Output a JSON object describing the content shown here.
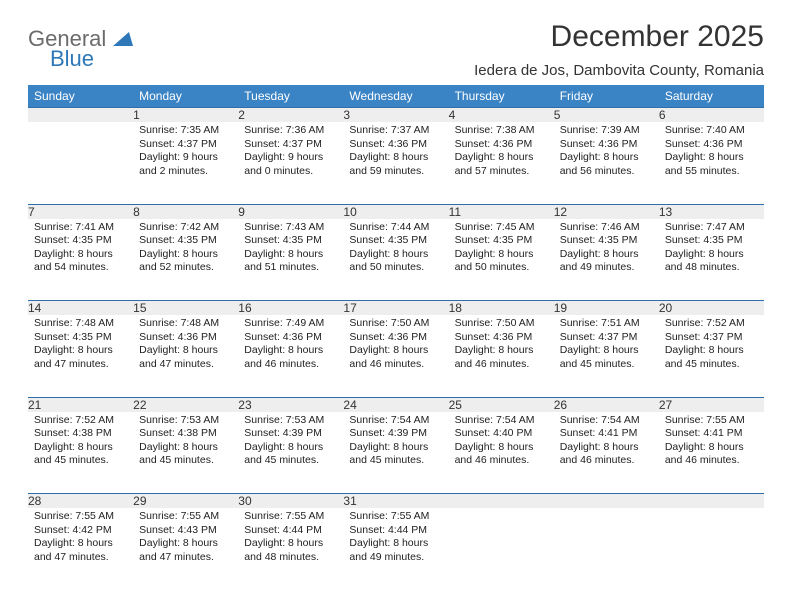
{
  "logo": {
    "top": "General",
    "bottom": "Blue",
    "triangle_color": "#2f78b7"
  },
  "title": "December 2025",
  "location": "Iedera de Jos, Dambovita County, Romania",
  "header_bg": "#3a83c4",
  "daynum_bg": "#eeeeee",
  "border_color": "#2f6ea8",
  "weekdays": [
    "Sunday",
    "Monday",
    "Tuesday",
    "Wednesday",
    "Thursday",
    "Friday",
    "Saturday"
  ],
  "weeks": [
    [
      null,
      {
        "n": "1",
        "sunrise": "7:35 AM",
        "sunset": "4:37 PM",
        "daylight": "9 hours and 2 minutes."
      },
      {
        "n": "2",
        "sunrise": "7:36 AM",
        "sunset": "4:37 PM",
        "daylight": "9 hours and 0 minutes."
      },
      {
        "n": "3",
        "sunrise": "7:37 AM",
        "sunset": "4:36 PM",
        "daylight": "8 hours and 59 minutes."
      },
      {
        "n": "4",
        "sunrise": "7:38 AM",
        "sunset": "4:36 PM",
        "daylight": "8 hours and 57 minutes."
      },
      {
        "n": "5",
        "sunrise": "7:39 AM",
        "sunset": "4:36 PM",
        "daylight": "8 hours and 56 minutes."
      },
      {
        "n": "6",
        "sunrise": "7:40 AM",
        "sunset": "4:36 PM",
        "daylight": "8 hours and 55 minutes."
      }
    ],
    [
      {
        "n": "7",
        "sunrise": "7:41 AM",
        "sunset": "4:35 PM",
        "daylight": "8 hours and 54 minutes."
      },
      {
        "n": "8",
        "sunrise": "7:42 AM",
        "sunset": "4:35 PM",
        "daylight": "8 hours and 52 minutes."
      },
      {
        "n": "9",
        "sunrise": "7:43 AM",
        "sunset": "4:35 PM",
        "daylight": "8 hours and 51 minutes."
      },
      {
        "n": "10",
        "sunrise": "7:44 AM",
        "sunset": "4:35 PM",
        "daylight": "8 hours and 50 minutes."
      },
      {
        "n": "11",
        "sunrise": "7:45 AM",
        "sunset": "4:35 PM",
        "daylight": "8 hours and 50 minutes."
      },
      {
        "n": "12",
        "sunrise": "7:46 AM",
        "sunset": "4:35 PM",
        "daylight": "8 hours and 49 minutes."
      },
      {
        "n": "13",
        "sunrise": "7:47 AM",
        "sunset": "4:35 PM",
        "daylight": "8 hours and 48 minutes."
      }
    ],
    [
      {
        "n": "14",
        "sunrise": "7:48 AM",
        "sunset": "4:35 PM",
        "daylight": "8 hours and 47 minutes."
      },
      {
        "n": "15",
        "sunrise": "7:48 AM",
        "sunset": "4:36 PM",
        "daylight": "8 hours and 47 minutes."
      },
      {
        "n": "16",
        "sunrise": "7:49 AM",
        "sunset": "4:36 PM",
        "daylight": "8 hours and 46 minutes."
      },
      {
        "n": "17",
        "sunrise": "7:50 AM",
        "sunset": "4:36 PM",
        "daylight": "8 hours and 46 minutes."
      },
      {
        "n": "18",
        "sunrise": "7:50 AM",
        "sunset": "4:36 PM",
        "daylight": "8 hours and 46 minutes."
      },
      {
        "n": "19",
        "sunrise": "7:51 AM",
        "sunset": "4:37 PM",
        "daylight": "8 hours and 45 minutes."
      },
      {
        "n": "20",
        "sunrise": "7:52 AM",
        "sunset": "4:37 PM",
        "daylight": "8 hours and 45 minutes."
      }
    ],
    [
      {
        "n": "21",
        "sunrise": "7:52 AM",
        "sunset": "4:38 PM",
        "daylight": "8 hours and 45 minutes."
      },
      {
        "n": "22",
        "sunrise": "7:53 AM",
        "sunset": "4:38 PM",
        "daylight": "8 hours and 45 minutes."
      },
      {
        "n": "23",
        "sunrise": "7:53 AM",
        "sunset": "4:39 PM",
        "daylight": "8 hours and 45 minutes."
      },
      {
        "n": "24",
        "sunrise": "7:54 AM",
        "sunset": "4:39 PM",
        "daylight": "8 hours and 45 minutes."
      },
      {
        "n": "25",
        "sunrise": "7:54 AM",
        "sunset": "4:40 PM",
        "daylight": "8 hours and 46 minutes."
      },
      {
        "n": "26",
        "sunrise": "7:54 AM",
        "sunset": "4:41 PM",
        "daylight": "8 hours and 46 minutes."
      },
      {
        "n": "27",
        "sunrise": "7:55 AM",
        "sunset": "4:41 PM",
        "daylight": "8 hours and 46 minutes."
      }
    ],
    [
      {
        "n": "28",
        "sunrise": "7:55 AM",
        "sunset": "4:42 PM",
        "daylight": "8 hours and 47 minutes."
      },
      {
        "n": "29",
        "sunrise": "7:55 AM",
        "sunset": "4:43 PM",
        "daylight": "8 hours and 47 minutes."
      },
      {
        "n": "30",
        "sunrise": "7:55 AM",
        "sunset": "4:44 PM",
        "daylight": "8 hours and 48 minutes."
      },
      {
        "n": "31",
        "sunrise": "7:55 AM",
        "sunset": "4:44 PM",
        "daylight": "8 hours and 49 minutes."
      },
      null,
      null,
      null
    ]
  ],
  "labels": {
    "sunrise": "Sunrise:",
    "sunset": "Sunset:",
    "daylight": "Daylight:"
  }
}
